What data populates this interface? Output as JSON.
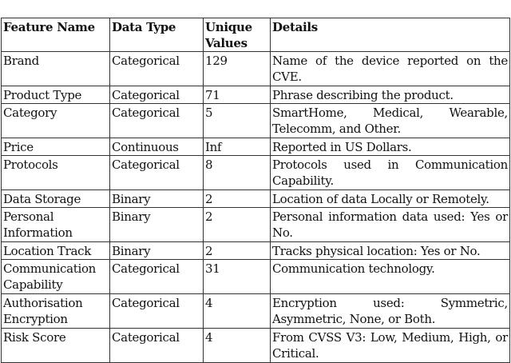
{
  "table": {
    "headers": [
      "Feature Name",
      "Data Type",
      "Unique Values",
      "Details"
    ],
    "rows": [
      {
        "name": "Brand",
        "type": "Categorical",
        "unique": "129",
        "details": "Name of the device reported on the CVE.",
        "lines": 2
      },
      {
        "name": "Product Type",
        "type": "Categorical",
        "unique": "71",
        "details": "Phrase describing the product.",
        "lines": 1
      },
      {
        "name": "Category",
        "type": "Categorical",
        "unique": "5",
        "details": "SmartHome, Medical, Wearable, Telecomm, and Other.",
        "lines": 2
      },
      {
        "name": "Price",
        "type": "Continuous",
        "unique": "Inf",
        "details": "Reported in US Dollars.",
        "lines": 1
      },
      {
        "name": "Protocols",
        "type": "Categorical",
        "unique": "8",
        "details": "Protocols used in Communication Capability.",
        "lines": 2
      },
      {
        "name": "Data Storage",
        "type": "Binary",
        "unique": "2",
        "details": "Location of data Locally or Remotely.",
        "lines": 1
      },
      {
        "name": "Personal Information",
        "type": "Binary",
        "unique": "2",
        "details": "Personal information data used: Yes or No.",
        "lines": 2
      },
      {
        "name": "Location Track",
        "type": "Binary",
        "unique": "2",
        "details": "Tracks physical location: Yes or No.",
        "lines": 1
      },
      {
        "name": "Communication Capability",
        "type": "Categorical",
        "unique": "31",
        "details": "Communication technology.",
        "lines": 2
      },
      {
        "name": "Authorisation Encryption",
        "type": "Categorical",
        "unique": "4",
        "details": "Encryption used: Symmetric, Asymmetric, None, or Both.",
        "lines": 2
      },
      {
        "name": "Risk Score",
        "type": "Categorical",
        "unique": "4",
        "details": "From CVSS V3: Low, Medium, High, or Critical.",
        "lines": 2
      }
    ]
  }
}
